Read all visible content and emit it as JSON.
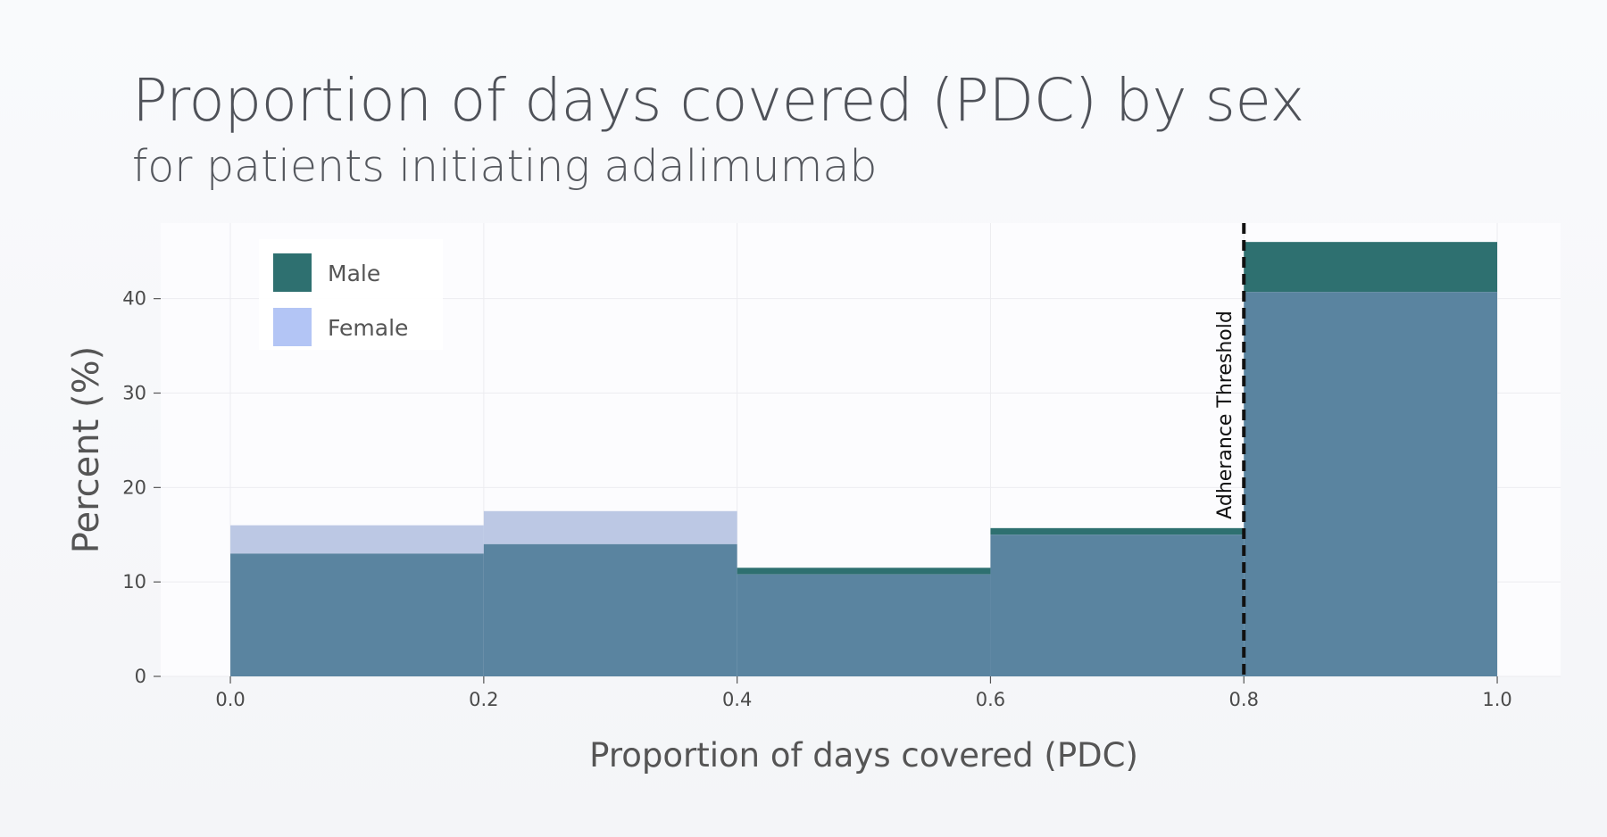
{
  "title": "Proportion of days covered (PDC) by sex",
  "subtitle": "for patients initiating adalimumab",
  "chart_data": {
    "type": "bar",
    "bins": [
      [
        0.0,
        0.2
      ],
      [
        0.2,
        0.4
      ],
      [
        0.4,
        0.6
      ],
      [
        0.6,
        0.8
      ],
      [
        0.8,
        1.0
      ]
    ],
    "series": [
      {
        "name": "Male",
        "values": [
          13.0,
          14.0,
          11.5,
          15.7,
          46.0
        ],
        "color": "#2e7070"
      },
      {
        "name": "Female",
        "values": [
          16.0,
          17.5,
          10.8,
          15.0,
          40.7
        ],
        "color": "#b3c5f5"
      }
    ],
    "overlap_color": "#5a84a0",
    "female_visible_color": "#bcc8e4",
    "xlabel": "Proportion of days covered (PDC)",
    "ylabel": "Percent (%)",
    "xlim": [
      -0.055,
      1.05
    ],
    "ylim": [
      0,
      48
    ],
    "xticks": [
      "0.0",
      "0.2",
      "0.4",
      "0.6",
      "0.8",
      "1.0"
    ],
    "yticks": [
      "0",
      "10",
      "20",
      "30",
      "40"
    ],
    "threshold": {
      "x": 0.8,
      "label": "Adherance Threshold"
    },
    "legend_placement": "top-left",
    "grid": true
  }
}
